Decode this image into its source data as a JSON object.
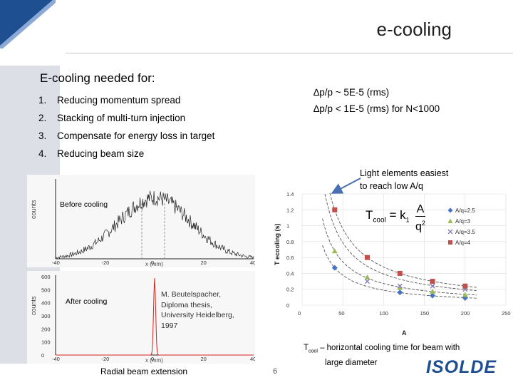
{
  "slide": {
    "title": "e-cooling",
    "heading": "E-cooling needed for:",
    "list": [
      {
        "num": "1.",
        "text": "Reducing momentum spread"
      },
      {
        "num": "2.",
        "text": "Stacking of multi-turn injection"
      },
      {
        "num": "3.",
        "text": "Compensate for energy loss in target"
      },
      {
        "num": "4.",
        "text": "Reducing beam size"
      }
    ],
    "dp_line1": "∆p/p ~ 5E-5 (rms)",
    "dp_line2": "∆p/p < 1E-5 (rms) for N<1000",
    "light_line1": "Light elements easiest",
    "light_line2": "to reach low A/q",
    "before_label": "Before cooling",
    "after_label": "After cooling",
    "reference": [
      "M. Beutelspacher,",
      "Diploma thesis,",
      "University Heidelberg,",
      "1997"
    ],
    "radial_caption": "Radial beam extension",
    "page_number": "6",
    "tcool_main": "T",
    "tcool_sub": "cool",
    "tcool_rest": " – horizontal cooling time for beam with",
    "tcool_line2": "large diameter",
    "formula": "T cool = k",
    "logo_text": "ISOLDE",
    "colors": {
      "accent_arrow": "#4a6fb0",
      "red_peak": "#d9231a",
      "logo": "#1d4f91"
    }
  },
  "chart_data": [
    {
      "type": "line",
      "name": "before-cooling-profile",
      "xlabel": "x (mm)",
      "ylabel": "counts",
      "xlim": [
        -40,
        40
      ],
      "xticks": [
        "-40",
        "-20",
        "0",
        "20",
        "40"
      ],
      "note": "noisy broad profile peaking near x=0"
    },
    {
      "type": "line",
      "name": "after-cooling-profile",
      "xlabel": "x (mm)",
      "ylabel": "counts",
      "xlim": [
        -40,
        40
      ],
      "ylim": [
        0,
        600
      ],
      "yticks": [
        "0",
        "100",
        "200",
        "300",
        "400",
        "500",
        "600"
      ],
      "xticks": [
        "-40",
        "-20",
        "0",
        "20",
        "40"
      ],
      "peak": {
        "x": 0,
        "y": 600
      }
    },
    {
      "type": "scatter",
      "name": "cooling-time",
      "xlabel": "A",
      "ylabel": "T ecooling (s)",
      "xlim": [
        0,
        250
      ],
      "ylim": [
        0,
        1.4
      ],
      "xticks": [
        0,
        50,
        100,
        150,
        200,
        250
      ],
      "yticks": [
        0,
        0.2,
        0.4,
        0.6,
        0.8,
        1,
        1.2,
        1.4
      ],
      "legend_position": "right",
      "series": [
        {
          "name": "A/q=2.5",
          "marker": "diamond",
          "color": "#4472c4",
          "x": [
            40,
            120,
            160,
            200
          ],
          "y": [
            0.47,
            0.16,
            0.12,
            0.09
          ]
        },
        {
          "name": "A/q=3",
          "marker": "triangle",
          "color": "#9bbb59",
          "x": [
            40,
            80,
            120,
            160,
            200
          ],
          "y": [
            0.68,
            0.35,
            0.22,
            0.17,
            0.13
          ]
        },
        {
          "name": "A/q=3.5",
          "marker": "x",
          "color": "#7f7fbf",
          "x": [
            80,
            120,
            160,
            200
          ],
          "y": [
            0.3,
            0.24,
            0.24,
            0.2
          ]
        },
        {
          "name": "A/q=4",
          "marker": "square",
          "color": "#c0504d",
          "x": [
            40,
            80,
            120,
            160,
            200
          ],
          "y": [
            1.2,
            0.6,
            0.4,
            0.3,
            0.24
          ]
        }
      ]
    }
  ]
}
